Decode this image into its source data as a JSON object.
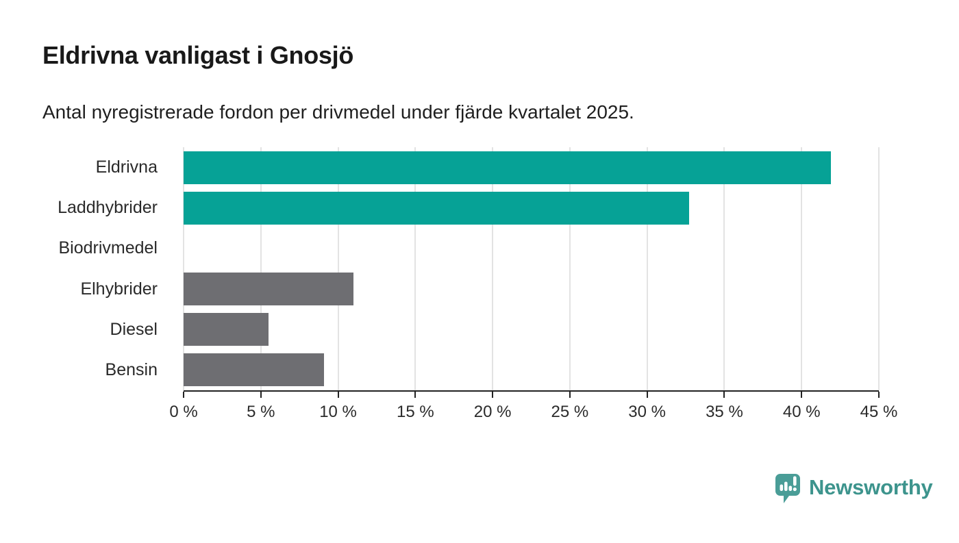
{
  "header": {
    "title": "Eldrivna vanligast i Gnosjö",
    "subtitle": "Antal nyregistrerade fordon per drivmedel under fjärde kvartalet 2025."
  },
  "chart_data": {
    "type": "bar",
    "orientation": "horizontal",
    "title": "Eldrivna vanligast i Gnosjö",
    "subtitle": "Antal nyregistrerade fordon per drivmedel under fjärde kvartalet 2025.",
    "categories": [
      "Eldrivna",
      "Laddhybrider",
      "Biodrivmedel",
      "Elhybrider",
      "Diesel",
      "Bensin"
    ],
    "values": [
      41.9,
      32.7,
      0,
      11.0,
      5.5,
      9.1
    ],
    "unit": "%",
    "bar_colors": [
      "#06a296",
      "#06a296",
      "#6e6e72",
      "#6e6e72",
      "#6e6e72",
      "#6e6e72"
    ],
    "xlim": [
      0,
      45
    ],
    "x_ticks": [
      0,
      5,
      10,
      15,
      20,
      25,
      30,
      35,
      40,
      45
    ],
    "x_tick_labels": [
      "0 %",
      "5 %",
      "10 %",
      "15 %",
      "20 %",
      "25 %",
      "30 %",
      "35 %",
      "40 %",
      "45 %"
    ],
    "xlabel": "",
    "ylabel": "",
    "grid": "vertical",
    "legend": "none"
  },
  "styles": {
    "background": "#ffffff",
    "title_color": "#191919",
    "subtitle_color": "#1f1f1f",
    "category_label_color": "#2a2a2a",
    "tick_label_color": "#2b2b2b",
    "axis_color": "#222222",
    "gridline_color": "#e3e3e3",
    "highlight_teal": "#06a296",
    "neutral_gray": "#6e6e72"
  },
  "footer": {
    "brand": "Newsworthy",
    "brand_color": "#3d948d",
    "logo_icon": "newsworthy-speech-bubble-chart-icon",
    "logo_bubble_color": "#4a9d97",
    "logo_glyph_color": "#ffffff"
  }
}
